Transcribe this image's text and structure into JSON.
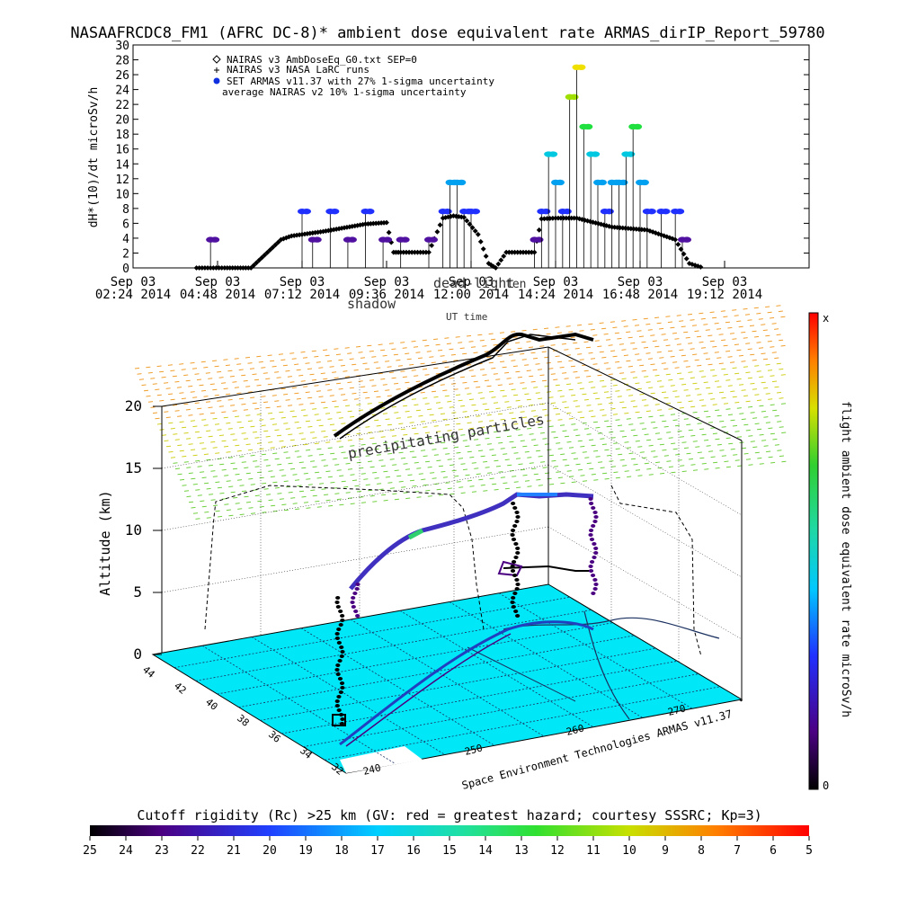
{
  "title": "NASAAFRCDC8_FM1 (AFRC DC-8)* ambient dose equivalent rate ARMAS_dirIP_Report_59780",
  "chart_data": [
    {
      "type": "scatter",
      "ylabel": "dH*(10)/dt microSv/h",
      "xlabel": "UT time",
      "ylim": [
        0,
        30
      ],
      "yticks": [
        0,
        2,
        4,
        6,
        8,
        10,
        12,
        14,
        16,
        18,
        20,
        22,
        24,
        26,
        28,
        30
      ],
      "xticks": [
        {
          "date": "Sep 03",
          "time": "02:24 2014"
        },
        {
          "date": "Sep 03",
          "time": "04:48 2014"
        },
        {
          "date": "Sep 03",
          "time": "07:12 2014"
        },
        {
          "date": "Sep 03",
          "time": "09:36 2014"
        },
        {
          "date": "Sep 03",
          "time": "12:00 2014"
        },
        {
          "date": "Sep 03",
          "time": "14:24 2014"
        },
        {
          "date": "Sep 03",
          "time": "16:48 2014"
        },
        {
          "date": "Sep 03",
          "time": "19:12 2014"
        }
      ],
      "xlim": [
        "02:24",
        "21:36"
      ],
      "legend": [
        {
          "symbol": "diamond",
          "label": "NAIRAS v3 AmbDoseEq_G0.txt SEP=0"
        },
        {
          "symbol": "plus",
          "label": "NAIRAS v3 NASA LaRC runs"
        },
        {
          "symbol": "dot",
          "label": "SET ARMAS v11.37 with 27% 1-sigma uncertainty"
        },
        {
          "symbol": "none",
          "label": "average NAIRAS v2 10% 1-sigma uncertainty"
        }
      ],
      "legend_position": "top-left",
      "annotations": [
        "ten",
        "dead-light",
        "shadow"
      ],
      "series": [
        {
          "name": "NAIRAS v3 AmbDoseEq_G0.txt SEP=0",
          "x": [
            "04:12",
            "05:00",
            "05:45",
            "06:36",
            "06:54",
            "07:12",
            "07:48",
            "08:24",
            "09:00",
            "09:36",
            "09:48",
            "10:00",
            "10:48",
            "11:12",
            "11:30",
            "11:48",
            "12:12",
            "12:30",
            "12:42",
            "13:00",
            "13:24",
            "13:48",
            "14:00",
            "14:24",
            "15:00",
            "16:00",
            "17:00",
            "17:48",
            "18:12",
            "18:36"
          ],
          "values": [
            0,
            0,
            0,
            3.8,
            4.3,
            4.5,
            4.9,
            5.4,
            5.9,
            6.1,
            2.1,
            2.1,
            2.1,
            6.7,
            7.0,
            6.8,
            4.5,
            0.6,
            0,
            2.1,
            2.1,
            2.1,
            6.6,
            6.7,
            6.7,
            5.5,
            5.1,
            3.8,
            0.6,
            0
          ]
        },
        {
          "name": "SET ARMAS v11.37 with 27% 1-sigma uncertainty",
          "x": [
            "04:36",
            "07:12",
            "07:30",
            "08:00",
            "08:30",
            "09:00",
            "09:30",
            "10:00",
            "10:48",
            "11:12",
            "11:24",
            "11:36",
            "11:48",
            "12:00",
            "13:48",
            "14:00",
            "14:12",
            "14:24",
            "14:36",
            "14:48",
            "15:00",
            "15:12",
            "15:24",
            "15:36",
            "15:48",
            "16:00",
            "16:12",
            "16:24",
            "16:36",
            "16:48",
            "17:00",
            "17:24",
            "17:48",
            "18:00"
          ],
          "values": [
            3.8,
            7.6,
            3.8,
            7.6,
            3.8,
            7.6,
            3.8,
            3.8,
            3.8,
            7.6,
            11.5,
            11.5,
            7.6,
            7.6,
            3.8,
            7.6,
            15.3,
            11.5,
            7.6,
            23,
            27,
            19,
            15.3,
            11.5,
            7.6,
            11.5,
            11.5,
            15.3,
            19,
            11.5,
            7.6,
            7.6,
            7.6,
            3.8
          ]
        }
      ]
    },
    {
      "type": "heatmap",
      "zlabel": "Altitude (km)",
      "zlim": [
        0,
        20
      ],
      "zticks": [
        0,
        5,
        10,
        15,
        20
      ],
      "lat_ticks": [
        44,
        42,
        40,
        38,
        36,
        34,
        32
      ],
      "lon_ticks": [
        240,
        250,
        260,
        270
      ],
      "labels": [
        "precipitating particles"
      ],
      "credit": "Space Environment Technologies ARMAS v11.37",
      "colorbar_label": "flight ambient dose equivalent rate microSv/h",
      "colorbar_top": "x",
      "colorbar_bottom": "0"
    }
  ],
  "rigidity_bar": {
    "title": "Cutoff rigidity (Rc) >25 km (GV: red = greatest hazard; courtesy SSSRC; Kp=3)",
    "ticks": [
      "25",
      "24",
      "23",
      "22",
      "21",
      "20",
      "19",
      "18",
      "17",
      "16",
      "15",
      "14",
      "13",
      "12",
      "11",
      "10",
      "9",
      "8",
      "7",
      "6",
      "5"
    ]
  }
}
